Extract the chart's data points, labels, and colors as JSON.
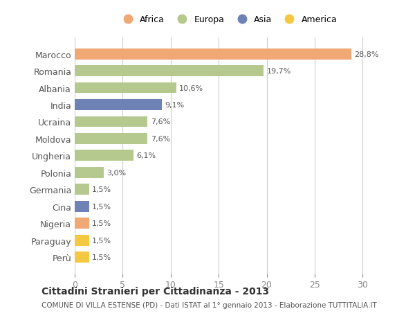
{
  "countries": [
    "Marocco",
    "Romania",
    "Albania",
    "India",
    "Ucraina",
    "Moldova",
    "Ungheria",
    "Polonia",
    "Germania",
    "Cina",
    "Nigeria",
    "Paraguay",
    "Perù"
  ],
  "values": [
    28.8,
    19.7,
    10.6,
    9.1,
    7.6,
    7.6,
    6.1,
    3.0,
    1.5,
    1.5,
    1.5,
    1.5,
    1.5
  ],
  "labels": [
    "28,8%",
    "19,7%",
    "10,6%",
    "9,1%",
    "7,6%",
    "7,6%",
    "6,1%",
    "3,0%",
    "1,5%",
    "1,5%",
    "1,5%",
    "1,5%",
    "1,5%"
  ],
  "continents": [
    "Africa",
    "Europa",
    "Europa",
    "Asia",
    "Europa",
    "Europa",
    "Europa",
    "Europa",
    "Europa",
    "Asia",
    "Africa",
    "America",
    "America"
  ],
  "colors": {
    "Africa": "#F0A875",
    "Europa": "#B5C98E",
    "Asia": "#6E82B5",
    "America": "#F5C842"
  },
  "legend_order": [
    "Africa",
    "Europa",
    "Asia",
    "America"
  ],
  "legend_colors": [
    "#F0A875",
    "#B5C98E",
    "#6E82B5",
    "#F5C842"
  ],
  "xlim": [
    0,
    32
  ],
  "xticks": [
    0,
    5,
    10,
    15,
    20,
    25,
    30
  ],
  "title": "Cittadini Stranieri per Cittadinanza - 2013",
  "subtitle": "COMUNE DI VILLA ESTENSE (PD) - Dati ISTAT al 1° gennaio 2013 - Elaborazione TUTTITALIA.IT",
  "bg_color": "#FFFFFF",
  "grid_color": "#CCCCCC",
  "bar_height": 0.65
}
